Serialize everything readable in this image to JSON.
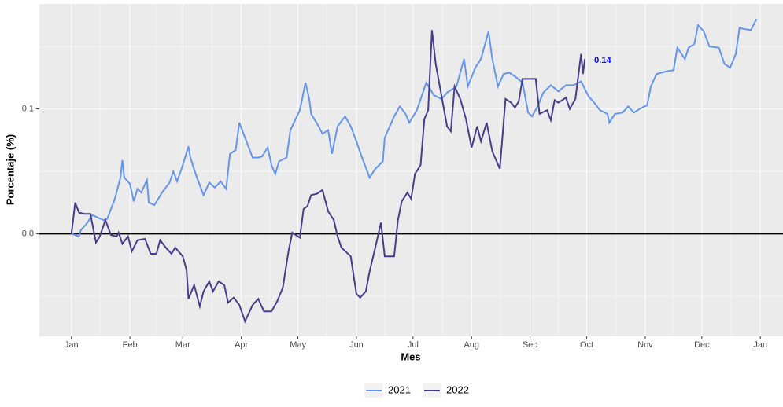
{
  "chart_data": {
    "type": "line",
    "x_label": "Mes",
    "y_label": "Porcentaje (%)",
    "xlim": [
      -16,
      378
    ],
    "ylim": [
      -0.082,
      0.184
    ],
    "xticks": [
      {
        "value": 1,
        "label": "Jan"
      },
      {
        "value": 32,
        "label": "Feb"
      },
      {
        "value": 60,
        "label": "Mar"
      },
      {
        "value": 91,
        "label": "Apr"
      },
      {
        "value": 121,
        "label": "May"
      },
      {
        "value": 152,
        "label": "Jun"
      },
      {
        "value": 182,
        "label": "Jul"
      },
      {
        "value": 213,
        "label": "Aug"
      },
      {
        "value": 244,
        "label": "Sep"
      },
      {
        "value": 274,
        "label": "Oct"
      },
      {
        "value": 305,
        "label": "Nov"
      },
      {
        "value": 335,
        "label": "Dec"
      },
      {
        "value": 366,
        "label": "Jan"
      }
    ],
    "yticks": [
      {
        "value": 0,
        "label": "0.0"
      },
      0.1
    ],
    "grid": true,
    "hline": 0,
    "legend": "bottom",
    "annotation": "0.14",
    "annotation_color": "#0000ff",
    "series": [
      {
        "name": "2021",
        "color": "#6495ed",
        "x": [
          1,
          5,
          6,
          9,
          12,
          15,
          18,
          20,
          24,
          27,
          28,
          29,
          32,
          34,
          36,
          38,
          41,
          42,
          45,
          49,
          53,
          55,
          57,
          60,
          63,
          64,
          67,
          71,
          74,
          77,
          80,
          83,
          85,
          88,
          90,
          93,
          97,
          100,
          102,
          105,
          107,
          109,
          111,
          115,
          117,
          122,
          125,
          127,
          128,
          132,
          134,
          137,
          139,
          142,
          146,
          149,
          152,
          155,
          159,
          162,
          166,
          167,
          172,
          175,
          178,
          180,
          184,
          189,
          193,
          197,
          200,
          205,
          209,
          211,
          215,
          218,
          222,
          224,
          227,
          230,
          233,
          236,
          240,
          243,
          245,
          248,
          251,
          255,
          259,
          263,
          267,
          271,
          275,
          278,
          281,
          285,
          286,
          289,
          293,
          296,
          299,
          302,
          306,
          308,
          311,
          316,
          320,
          322,
          326,
          328,
          331,
          333,
          336,
          339,
          344,
          347,
          350,
          353,
          355,
          357,
          361,
          364
        ],
        "values": [
          0,
          -0.002,
          0.003,
          0.008,
          0.015,
          0.013,
          0.011,
          0.012,
          0.028,
          0.045,
          0.059,
          0.045,
          0.04,
          0.026,
          0.036,
          0.033,
          0.043,
          0.025,
          0.023,
          0.033,
          0.041,
          0.05,
          0.042,
          0.055,
          0.07,
          0.061,
          0.047,
          0.031,
          0.041,
          0.037,
          0.042,
          0.036,
          0.064,
          0.067,
          0.089,
          0.077,
          0.061,
          0.061,
          0.062,
          0.069,
          0.055,
          0.048,
          0.058,
          0.061,
          0.083,
          0.099,
          0.121,
          0.108,
          0.096,
          0.086,
          0.08,
          0.083,
          0.064,
          0.086,
          0.094,
          0.086,
          0.074,
          0.061,
          0.045,
          0.052,
          0.058,
          0.077,
          0.094,
          0.102,
          0.096,
          0.089,
          0.099,
          0.121,
          0.111,
          0.108,
          0.113,
          0.118,
          0.14,
          0.118,
          0.133,
          0.14,
          0.162,
          0.14,
          0.118,
          0.128,
          0.129,
          0.126,
          0.121,
          0.097,
          0.094,
          0.102,
          0.113,
          0.119,
          0.114,
          0.119,
          0.119,
          0.122,
          0.11,
          0.105,
          0.099,
          0.096,
          0.089,
          0.096,
          0.097,
          0.102,
          0.097,
          0.1,
          0.103,
          0.118,
          0.128,
          0.13,
          0.131,
          0.149,
          0.14,
          0.149,
          0.152,
          0.167,
          0.162,
          0.15,
          0.149,
          0.136,
          0.133,
          0.144,
          0.165,
          0.164,
          0.163,
          0.172
        ]
      },
      {
        "name": "2022",
        "color": "#483d8b",
        "x": [
          1,
          3,
          5,
          8,
          11,
          14,
          16,
          19,
          22,
          25,
          26,
          28,
          31,
          33,
          36,
          40,
          43,
          46,
          48,
          51,
          54,
          56,
          60,
          62,
          63,
          66,
          69,
          71,
          74,
          76,
          79,
          82,
          84,
          87,
          90,
          93,
          97,
          100,
          103,
          107,
          110,
          113,
          116,
          118,
          122,
          124,
          126,
          128,
          131,
          134,
          137,
          140,
          142,
          144,
          149,
          152,
          154,
          157,
          159,
          162,
          165,
          167,
          172,
          174,
          176,
          179,
          181,
          183,
          186,
          188,
          190,
          192,
          194,
          197,
          200,
          202,
          204,
          207,
          210,
          213,
          216,
          218,
          221,
          224,
          228,
          231,
          234,
          236,
          238,
          240,
          245,
          247,
          249,
          253,
          255,
          257,
          259,
          263,
          265,
          268,
          271,
          272,
          273
        ],
        "values": [
          0,
          0.025,
          0.017,
          0.016,
          0.016,
          -0.007,
          -0.002,
          0.011,
          -0.001,
          -0.002,
          0.001,
          -0.008,
          -0.002,
          -0.014,
          -0.005,
          -0.004,
          -0.016,
          -0.016,
          -0.005,
          -0.011,
          -0.016,
          -0.011,
          -0.018,
          -0.029,
          -0.052,
          -0.041,
          -0.058,
          -0.046,
          -0.038,
          -0.046,
          -0.038,
          -0.041,
          -0.055,
          -0.051,
          -0.057,
          -0.07,
          -0.057,
          -0.052,
          -0.062,
          -0.062,
          -0.054,
          -0.043,
          -0.014,
          0.001,
          -0.003,
          0.02,
          0.022,
          0.031,
          0.032,
          0.035,
          0.018,
          0.011,
          -0.002,
          -0.011,
          -0.018,
          -0.048,
          -0.051,
          -0.046,
          -0.03,
          -0.011,
          0.009,
          -0.018,
          -0.018,
          0.011,
          0.026,
          0.033,
          0.028,
          0.048,
          0.055,
          0.092,
          0.099,
          0.163,
          0.136,
          0.111,
          0.086,
          0.082,
          0.118,
          0.108,
          0.092,
          0.069,
          0.086,
          0.074,
          0.089,
          0.066,
          0.052,
          0.108,
          0.105,
          0.101,
          0.106,
          0.124,
          0.124,
          0.124,
          0.096,
          0.099,
          0.091,
          0.107,
          0.105,
          0.109,
          0.1,
          0.108,
          0.144,
          0.128,
          0.14
        ]
      }
    ]
  }
}
